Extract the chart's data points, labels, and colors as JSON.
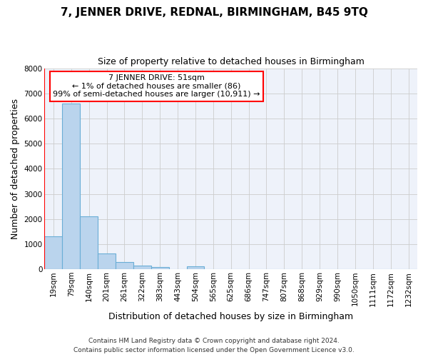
{
  "title": "7, JENNER DRIVE, REDNAL, BIRMINGHAM, B45 9TQ",
  "subtitle": "Size of property relative to detached houses in Birmingham",
  "xlabel": "Distribution of detached houses by size in Birmingham",
  "ylabel": "Number of detached properties",
  "bin_labels": [
    "19sqm",
    "79sqm",
    "140sqm",
    "201sqm",
    "261sqm",
    "322sqm",
    "383sqm",
    "443sqm",
    "504sqm",
    "565sqm",
    "625sqm",
    "686sqm",
    "747sqm",
    "807sqm",
    "868sqm",
    "929sqm",
    "990sqm",
    "1050sqm",
    "1111sqm",
    "1172sqm",
    "1232sqm"
  ],
  "bar_heights": [
    1300,
    6600,
    2100,
    620,
    300,
    150,
    90,
    0,
    110,
    0,
    0,
    0,
    0,
    0,
    0,
    0,
    0,
    0,
    0,
    0,
    0
  ],
  "bar_color": "#bad4ed",
  "bar_edge_color": "#6aaed6",
  "annotation_box_text": "7 JENNER DRIVE: 51sqm\n← 1% of detached houses are smaller (86)\n99% of semi-detached houses are larger (10,911) →",
  "annotation_box_edge_color": "red",
  "ylim": [
    0,
    8000
  ],
  "yticks": [
    0,
    1000,
    2000,
    3000,
    4000,
    5000,
    6000,
    7000,
    8000
  ],
  "footer_line1": "Contains HM Land Registry data © Crown copyright and database right 2024.",
  "footer_line2": "Contains public sector information licensed under the Open Government Licence v3.0.",
  "bg_color": "#ffffff",
  "plot_bg_color": "#eef2fa",
  "grid_color": "#cccccc",
  "title_fontsize": 11,
  "subtitle_fontsize": 9,
  "axis_label_fontsize": 9,
  "tick_fontsize": 7.5,
  "footer_fontsize": 6.5
}
